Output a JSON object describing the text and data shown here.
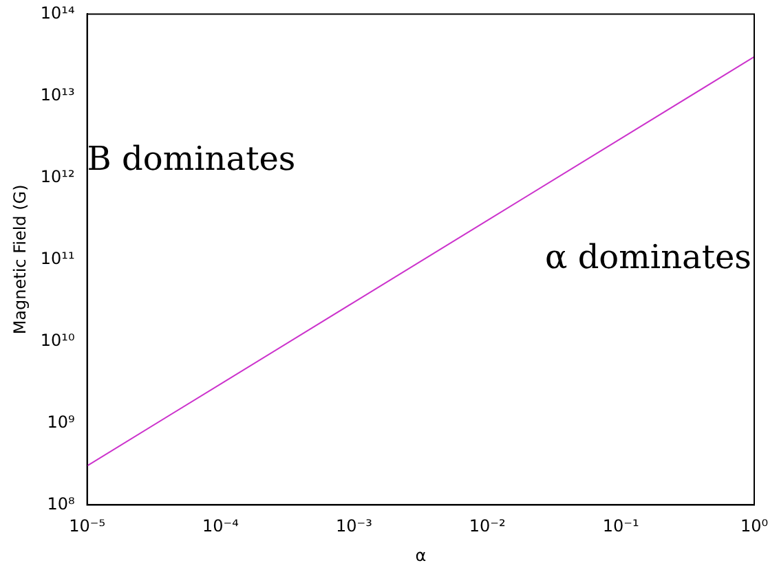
{
  "chart_data": {
    "type": "line",
    "xlabel": "α",
    "ylabel": "Magnetic Field (G)",
    "log": "xy",
    "grid": false,
    "legend": false,
    "marker": "none",
    "line_style": "solid",
    "x": [
      1e-05,
      0.0001,
      0.001,
      0.01,
      0.1,
      1
    ],
    "series": [
      {
        "color": "#cc33cc",
        "values": [
          300000000.0,
          3000000000.0,
          30000000000.0,
          300000000000.0,
          3000000000000.0,
          30000000000000.0
        ]
      }
    ],
    "xlim": [
      1e-05,
      1
    ],
    "xticks": [
      {
        "value": 1e-05,
        "label": "10⁻⁵"
      },
      {
        "value": 0.0001,
        "label": "10⁻⁴"
      },
      {
        "value": 0.001,
        "label": "10⁻³"
      },
      {
        "value": 0.01,
        "label": "10⁻²"
      },
      {
        "value": 0.1,
        "label": "10⁻¹"
      },
      {
        "value": 1,
        "label": "10⁰"
      }
    ],
    "ylim": [
      100000000.0,
      100000000000000.0
    ],
    "yticks": [
      {
        "value": 100000000.0,
        "label": "10⁸"
      },
      {
        "value": 1000000000.0,
        "label": "10⁹"
      },
      {
        "value": 10000000000.0,
        "label": "10¹⁰"
      },
      {
        "value": 100000000000.0,
        "label": "10¹¹"
      },
      {
        "value": 1000000000000.0,
        "label": "10¹²"
      },
      {
        "value": 10000000000000.0,
        "label": "10¹³"
      },
      {
        "value": 100000000000000.0,
        "label": "10¹⁴"
      }
    ],
    "annotations": [
      "B dominates",
      "α dominates"
    ]
  }
}
